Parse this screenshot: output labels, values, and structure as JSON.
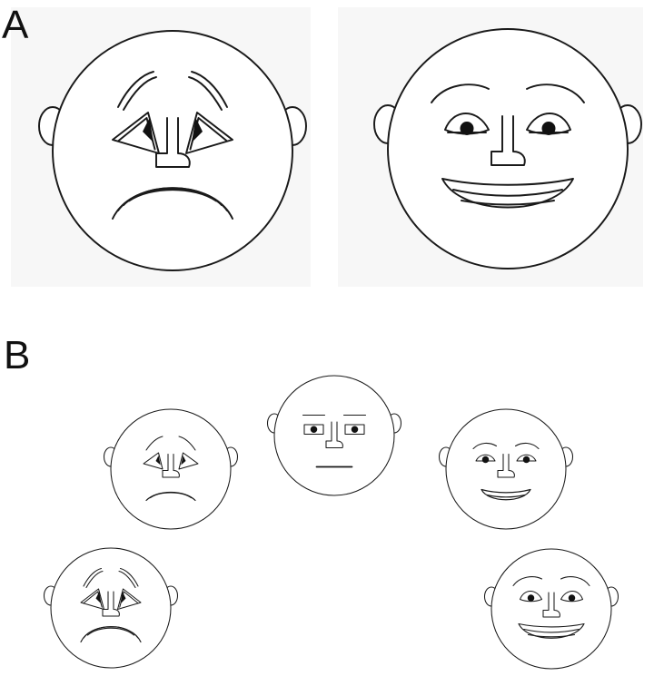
{
  "panels": {
    "a": {
      "label": "A"
    },
    "b": {
      "label": "B"
    }
  },
  "colors": {
    "line": "#1a1a1a",
    "background": "#ffffff",
    "panel_a_background": "#f7f7f7"
  },
  "faces": [
    {
      "panel": "A",
      "expression": "sad"
    },
    {
      "panel": "A",
      "expression": "happy"
    },
    {
      "panel": "B",
      "expression": "sad-moderate"
    },
    {
      "panel": "B",
      "expression": "neutral"
    },
    {
      "panel": "B",
      "expression": "happy-moderate"
    },
    {
      "panel": "B",
      "expression": "sad"
    },
    {
      "panel": "B",
      "expression": "happy"
    }
  ]
}
